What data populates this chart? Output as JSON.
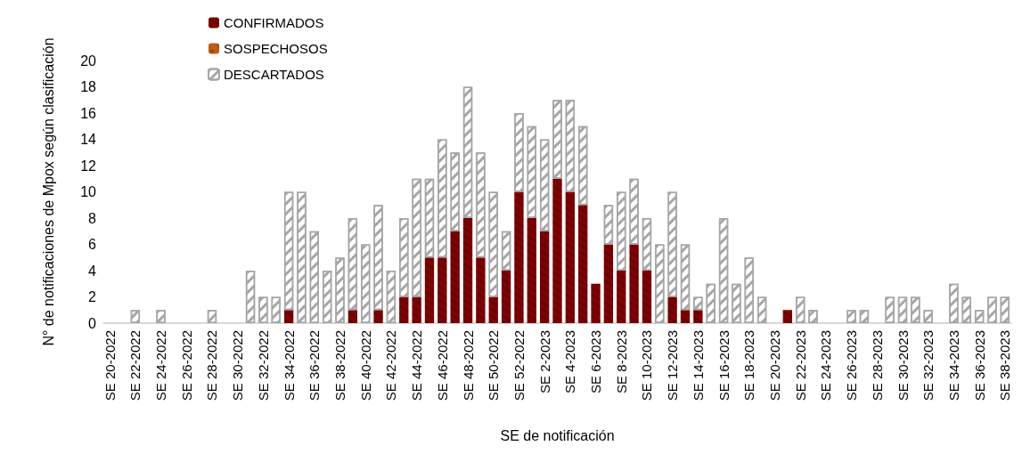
{
  "chart_data": {
    "type": "bar",
    "stacked": true,
    "xlabel": "SE de notificación",
    "ylabel": "N° de notificaciones de Mpox según clasificación",
    "categories": [
      "SE 20-2022",
      null,
      "SE 22-2022",
      null,
      "SE 24-2022",
      null,
      "SE 26-2022",
      null,
      "SE 28-2022",
      null,
      "SE 30-2022",
      null,
      "SE 32-2022",
      null,
      "SE 34-2022",
      null,
      "SE 36-2022",
      null,
      "SE 38-2022",
      null,
      "SE 40-2022",
      null,
      "SE 42-2022",
      null,
      "SE 44-2022",
      null,
      "SE 46-2022",
      null,
      "SE 48-2022",
      null,
      "SE 50-2022",
      null,
      "SE 52-2022",
      null,
      "SE 2-2023",
      null,
      "SE 4-2023",
      null,
      "SE 6-2023",
      null,
      "SE 8-2023",
      null,
      "SE 10-2023",
      null,
      "SE 12-2023",
      null,
      "SE 14-2023",
      null,
      "SE 16-2023",
      null,
      "SE 18-2023",
      null,
      "SE 20-2023",
      null,
      "SE 22-2023",
      null,
      "SE 24-2023",
      null,
      "SE 26-2023",
      null,
      "SE 28-2023",
      null,
      "SE 30-2023",
      null,
      "SE 32-2023",
      null,
      "SE 34-2023",
      null,
      "SE 36-2023",
      null,
      "SE 38-2023"
    ],
    "series": [
      {
        "name": "CONFIRMADOS",
        "color": "#7f0000",
        "values": [
          0,
          0,
          0,
          0,
          0,
          0,
          0,
          0,
          0,
          0,
          0,
          0,
          0,
          0,
          1,
          0,
          0,
          0,
          0,
          1,
          0,
          1,
          0,
          2,
          2,
          5,
          5,
          7,
          8,
          5,
          2,
          4,
          10,
          8,
          7,
          11,
          10,
          9,
          3,
          6,
          4,
          6,
          4,
          0,
          2,
          1,
          1,
          0,
          0,
          0,
          0,
          0,
          0,
          1,
          0,
          0,
          0,
          0,
          0,
          0,
          0,
          0,
          0,
          0,
          0,
          0,
          0,
          0,
          0,
          0,
          0
        ]
      },
      {
        "name": "SOSPECHOSOS",
        "color": "#c55a11",
        "values": [
          0,
          0,
          0,
          0,
          0,
          0,
          0,
          0,
          0,
          0,
          0,
          0,
          0,
          0,
          0,
          0,
          0,
          0,
          0,
          0,
          0,
          0,
          0,
          0,
          0,
          0,
          0,
          0,
          0,
          0,
          0,
          0,
          0,
          0,
          0,
          0,
          0,
          0,
          0,
          0,
          0,
          0,
          0,
          0,
          0,
          0,
          0,
          0,
          0,
          0,
          0,
          0,
          0,
          0,
          0,
          0,
          0,
          0,
          0,
          0,
          0,
          0,
          0,
          0,
          0,
          0,
          0,
          0,
          0,
          0,
          0
        ]
      },
      {
        "name": "DESCARTADOS",
        "color": "#a6a6a6",
        "values": [
          0,
          0,
          1,
          0,
          1,
          0,
          0,
          0,
          1,
          0,
          0,
          4,
          2,
          2,
          9,
          10,
          7,
          4,
          5,
          7,
          6,
          8,
          4,
          6,
          9,
          6,
          9,
          6,
          10,
          8,
          8,
          3,
          6,
          7,
          7,
          6,
          7,
          6,
          0,
          3,
          6,
          5,
          4,
          6,
          8,
          5,
          1,
          3,
          8,
          3,
          5,
          2,
          0,
          0,
          2,
          1,
          0,
          0,
          1,
          1,
          0,
          2,
          2,
          2,
          1,
          0,
          3,
          2,
          1,
          2,
          2
        ]
      }
    ],
    "ylim": [
      0,
      20
    ],
    "yticks": [
      0,
      2,
      4,
      6,
      8,
      10,
      12,
      14,
      16,
      18,
      20
    ],
    "grid": false,
    "legend": "top left"
  }
}
